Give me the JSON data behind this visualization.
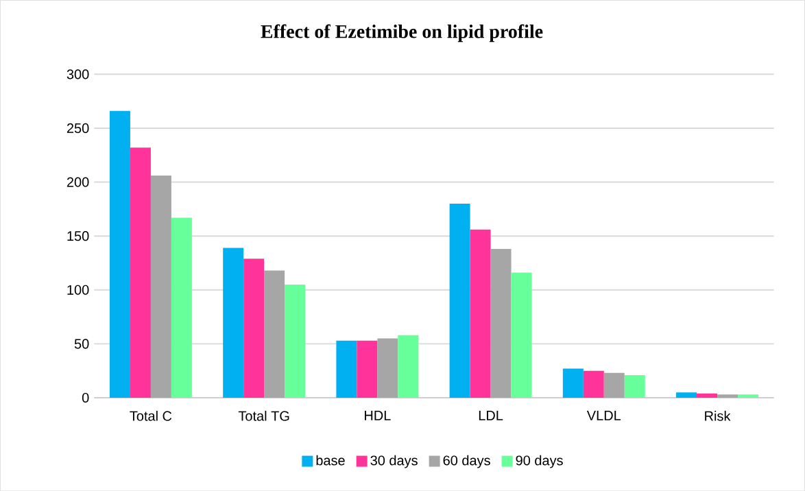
{
  "chart_data": {
    "type": "bar",
    "title": "Effect of Ezetimibe on lipid profile",
    "categories": [
      "Total C",
      "Total TG",
      "HDL",
      "LDL",
      "VLDL",
      "Risk"
    ],
    "series": [
      {
        "name": "base",
        "color": "#00b0f0",
        "values": [
          266,
          139,
          53,
          180,
          27,
          5
        ]
      },
      {
        "name": "30 days",
        "color": "#ff3399",
        "values": [
          232,
          129,
          53,
          156,
          25,
          4
        ]
      },
      {
        "name": "60 days",
        "color": "#a6a6a6",
        "values": [
          206,
          118,
          55,
          138,
          23,
          3
        ]
      },
      {
        "name": "90 days",
        "color": "#66ff99",
        "values": [
          167,
          105,
          58,
          116,
          21,
          3
        ]
      }
    ],
    "ylim": [
      0,
      300
    ],
    "yticks": [
      0,
      50,
      100,
      150,
      200,
      250,
      300
    ],
    "grid": "y",
    "legend": "bottom"
  }
}
